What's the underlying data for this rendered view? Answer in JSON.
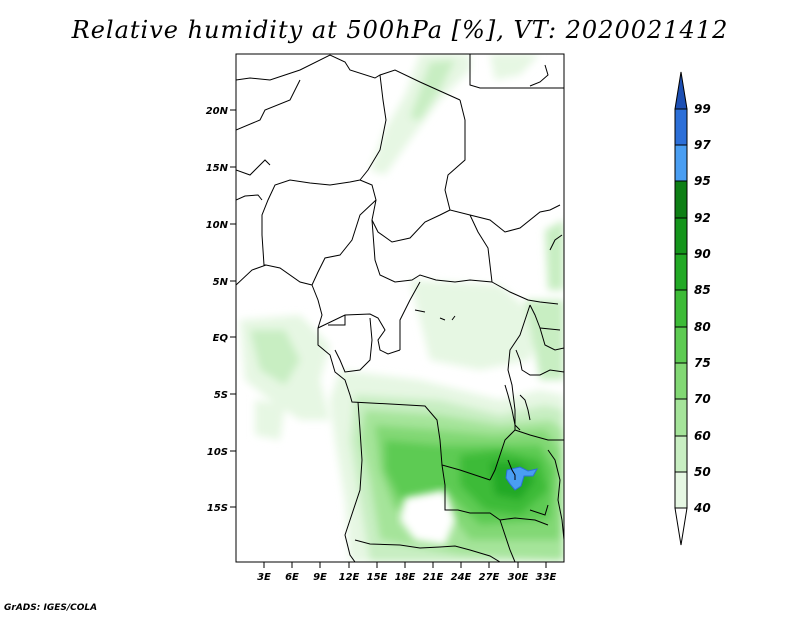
{
  "title": "Relative humidity at 500hPa [%], VT: 2020021412",
  "credit": "GrADS: IGES/COLA",
  "map": {
    "lat_labels": [
      "20N",
      "15N",
      "10N",
      "5N",
      "EQ",
      "5S",
      "10S",
      "15S"
    ],
    "lon_labels": [
      "3E",
      "6E",
      "9E",
      "12E",
      "15E",
      "18E",
      "21E",
      "24E",
      "27E",
      "30E",
      "33E"
    ]
  },
  "colorbar": {
    "levels": [
      "40",
      "50",
      "60",
      "70",
      "75",
      "80",
      "85",
      "90",
      "92",
      "95",
      "97",
      "99"
    ],
    "colors": [
      "#ffffff",
      "#e6f7e3",
      "#c8eec2",
      "#a5e49a",
      "#82d874",
      "#5dcb52",
      "#3dbb37",
      "#22a925",
      "#14951b",
      "#0e7f15",
      "#4a9ef2",
      "#2c6fd8",
      "#1d4fb3"
    ]
  }
}
